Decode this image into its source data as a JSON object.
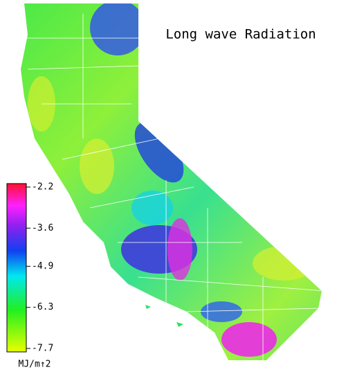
{
  "title": "Long wave Radiation",
  "colorbar": {
    "ticks": [
      -2.2,
      -3.6,
      -4.9,
      -6.3,
      -7.7
    ],
    "unit": "MJ/m↑2"
  }
}
